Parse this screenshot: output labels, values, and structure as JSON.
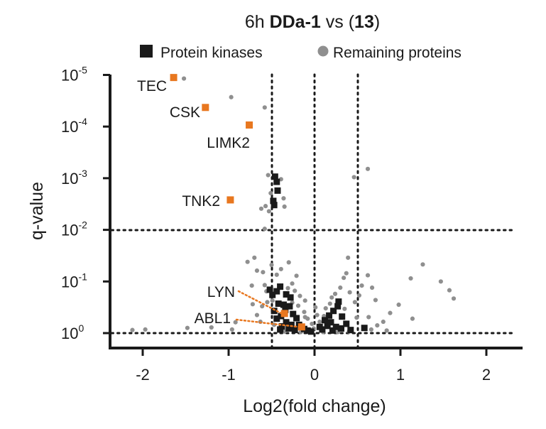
{
  "chart_data": {
    "type": "scatter",
    "title": {
      "prefix": "6h ",
      "compound": "DDa-1",
      "middle": " vs (",
      "comparator": "13",
      "suffix": ")"
    },
    "xlabel": "Log2(fold change)",
    "ylabel": "q-value",
    "xlim": [
      -2.35,
      2.45
    ],
    "ylim_log10": [
      0.3,
      -5.2
    ],
    "x_ticks": [
      {
        "value": -2,
        "label": "-2"
      },
      {
        "value": -1,
        "label": "-1"
      },
      {
        "value": 0,
        "label": "0"
      },
      {
        "value": 1,
        "label": "1"
      },
      {
        "value": 2,
        "label": "2"
      }
    ],
    "y_ticks": [
      {
        "log10": -5,
        "base": "10",
        "exp": "-5"
      },
      {
        "log10": -4,
        "base": "10",
        "exp": "-4"
      },
      {
        "log10": -3,
        "base": "10",
        "exp": "-3"
      },
      {
        "log10": -2,
        "base": "10",
        "exp": "-2"
      },
      {
        "log10": -1,
        "base": "10",
        "exp": "-1"
      },
      {
        "log10": 0,
        "base": "10",
        "exp": "0"
      }
    ],
    "thresholds": {
      "fold_change_x": [
        -0.5,
        0,
        0.5
      ],
      "q_value_log10": [
        -2,
        0
      ]
    },
    "legend": [
      {
        "label": "Protein kinases",
        "marker": "square",
        "color": "#1a1a1a"
      },
      {
        "label": "Remaining proteins",
        "marker": "circle",
        "color": "#8f8f8f"
      }
    ],
    "highlighted": [
      {
        "label": "TEC",
        "x": -1.64,
        "q_log10": -4.95
      },
      {
        "label": "CSK",
        "x": -1.27,
        "q_log10": -4.37
      },
      {
        "label": "LIMK2",
        "x": -0.76,
        "q_log10": -4.03
      },
      {
        "label": "TNK2",
        "x": -0.98,
        "q_log10": -2.58
      },
      {
        "label": "LYN",
        "x": -0.35,
        "q_log10": -0.38
      },
      {
        "label": "ABL1",
        "x": -0.15,
        "q_log10": -0.12
      }
    ],
    "kinases": [
      [
        -0.46,
        -3.03
      ],
      [
        -0.44,
        -2.93
      ],
      [
        -0.43,
        -2.76
      ],
      [
        -0.48,
        -2.56
      ],
      [
        -0.47,
        -2.48
      ],
      [
        -0.52,
        -0.84
      ],
      [
        -0.49,
        -0.74
      ],
      [
        -0.44,
        -0.81
      ],
      [
        -0.4,
        -0.9
      ],
      [
        -0.33,
        -0.75
      ],
      [
        -0.28,
        -0.69
      ],
      [
        -0.36,
        -0.55
      ],
      [
        -0.42,
        -0.57
      ],
      [
        -0.47,
        -0.43
      ],
      [
        -0.29,
        -0.52
      ],
      [
        -0.34,
        -0.45
      ],
      [
        -0.39,
        -0.33
      ],
      [
        -0.44,
        -0.28
      ],
      [
        -0.25,
        -0.37
      ],
      [
        -0.21,
        -0.29
      ],
      [
        -0.33,
        -0.21
      ],
      [
        -0.27,
        -0.16
      ],
      [
        -0.38,
        -0.13
      ],
      [
        -0.18,
        -0.16
      ],
      [
        -0.12,
        -0.08
      ],
      [
        -0.23,
        -0.06
      ],
      [
        -0.3,
        -0.09
      ],
      [
        -0.4,
        -0.07
      ],
      [
        -0.08,
        -0.05
      ],
      [
        -0.04,
        -0.03
      ],
      [
        0.09,
        -0.07
      ],
      [
        0.15,
        -0.14
      ],
      [
        0.19,
        -0.21
      ],
      [
        0.28,
        -0.61
      ],
      [
        0.27,
        -0.52
      ],
      [
        0.22,
        -0.43
      ],
      [
        0.32,
        -0.32
      ],
      [
        0.12,
        -0.25
      ],
      [
        0.17,
        -0.34
      ],
      [
        0.25,
        -0.12
      ],
      [
        0.31,
        -0.09
      ],
      [
        0.37,
        -0.18
      ],
      [
        0.06,
        -0.12
      ],
      [
        0.42,
        -0.06
      ],
      [
        0.58,
        -0.1
      ],
      [
        0.21,
        -0.05
      ]
    ],
    "others": [
      [
        -2.12,
        -0.06
      ],
      [
        -1.97,
        -0.07
      ],
      [
        -1.48,
        -0.1
      ],
      [
        -1.2,
        -0.11
      ],
      [
        -0.96,
        -0.07
      ],
      [
        -0.92,
        -0.21
      ],
      [
        -1.52,
        -4.93
      ],
      [
        -0.97,
        -4.57
      ],
      [
        -0.58,
        -4.37
      ],
      [
        -0.62,
        -2.41
      ],
      [
        -0.51,
        -2.71
      ],
      [
        -0.54,
        -3.06
      ],
      [
        -0.57,
        -2.46
      ],
      [
        -0.53,
        -2.36
      ],
      [
        -0.58,
        -2.02
      ],
      [
        -0.39,
        -2.98
      ],
      [
        -0.36,
        -2.61
      ],
      [
        -0.35,
        -2.45
      ],
      [
        0.46,
        -3.02
      ],
      [
        0.62,
        -3.18
      ],
      [
        -0.78,
        -1.38
      ],
      [
        -0.7,
        -1.46
      ],
      [
        -0.67,
        -1.21
      ],
      [
        -0.73,
        -0.92
      ],
      [
        -0.6,
        -1.18
      ],
      [
        -0.58,
        -0.93
      ],
      [
        -0.56,
        -0.81
      ],
      [
        -0.5,
        -1.32
      ],
      [
        -0.44,
        -1.13
      ],
      [
        -0.39,
        -1.24
      ],
      [
        -0.3,
        -1.37
      ],
      [
        -0.21,
        -1.11
      ],
      [
        -0.55,
        -0.6
      ],
      [
        -0.49,
        -0.63
      ],
      [
        -0.31,
        -0.87
      ],
      [
        -0.26,
        -0.96
      ],
      [
        -0.23,
        -0.82
      ],
      [
        -0.17,
        -0.72
      ],
      [
        -0.11,
        -0.63
      ],
      [
        -0.19,
        -0.53
      ],
      [
        -0.12,
        -0.41
      ],
      [
        -0.08,
        -0.28
      ],
      [
        -0.03,
        -0.18
      ],
      [
        -0.01,
        -0.09
      ],
      [
        0.03,
        -0.35
      ],
      [
        0.06,
        -0.22
      ],
      [
        0.11,
        -0.33
      ],
      [
        0.13,
        -0.48
      ],
      [
        0.18,
        -0.57
      ],
      [
        0.2,
        -0.69
      ],
      [
        0.24,
        -0.76
      ],
      [
        0.3,
        -0.88
      ],
      [
        0.34,
        -1.07
      ],
      [
        0.37,
        -1.16
      ],
      [
        0.39,
        -1.46
      ],
      [
        0.41,
        -0.79
      ],
      [
        0.47,
        -0.6
      ],
      [
        0.52,
        -0.73
      ],
      [
        0.55,
        -0.92
      ],
      [
        0.62,
        -1.12
      ],
      [
        0.67,
        -0.88
      ],
      [
        0.63,
        -0.31
      ],
      [
        0.73,
        -0.15
      ],
      [
        0.8,
        -0.22
      ],
      [
        0.88,
        -0.39
      ],
      [
        0.98,
        -0.55
      ],
      [
        1.12,
        -1.06
      ],
      [
        1.26,
        -1.33
      ],
      [
        1.47,
        -1.0
      ],
      [
        1.57,
        -0.83
      ],
      [
        1.62,
        -0.67
      ],
      [
        1.14,
        -0.28
      ],
      [
        0.84,
        -0.05
      ],
      [
        0.66,
        -0.07
      ],
      [
        0.4,
        -0.03
      ],
      [
        0.27,
        -0.02
      ],
      [
        -0.61,
        -0.52
      ],
      [
        -0.67,
        -0.35
      ],
      [
        -0.72,
        -0.56
      ],
      [
        -0.63,
        -0.22
      ],
      [
        -0.35,
        -0.03
      ],
      [
        -0.16,
        -0.02
      ],
      [
        0.1,
        -0.02
      ],
      [
        -0.47,
        -0.16
      ],
      [
        -0.26,
        -0.59
      ],
      [
        0.49,
        -0.3
      ],
      [
        0.35,
        -0.47
      ],
      [
        -0.11,
        -0.31
      ],
      [
        0.01,
        -0.5
      ],
      [
        0.71,
        -0.64
      ]
    ]
  }
}
